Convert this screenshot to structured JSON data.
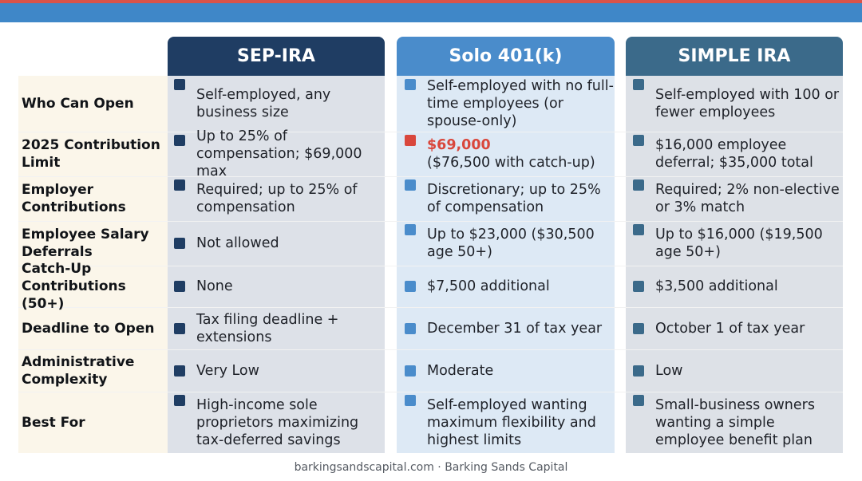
{
  "colors": {
    "top_red": "#d9534a",
    "top_blue": "#3f87c8",
    "sep_ira": "#1f3d63",
    "solo_401k": "#4a8ccb",
    "simple_ira": "#3b6a8a",
    "highlight": "#d9473c"
  },
  "headers": {
    "sep_ira": "SEP-IRA",
    "solo_401k": "Solo 401(k)",
    "simple_ira": "SIMPLE IRA"
  },
  "rows": [
    {
      "label": "Who Can Open",
      "sep_ira": "Self-employed, any business size",
      "solo_401k": "Self-employed with no full-time employees (or spouse-only)",
      "simple_ira": "Self-employed with 100 or fewer employees"
    },
    {
      "label": "2025 Contribution Limit",
      "sep_ira": "Up to 25% of compensation; $69,000 max",
      "solo_401k_highlight": "$69,000",
      "solo_401k": "($76,500 with catch-up)",
      "simple_ira": "$16,000 employee deferral; $35,000 total"
    },
    {
      "label": "Employer Contributions",
      "sep_ira": "Required; up to 25% of compensation",
      "solo_401k": "Discretionary; up to 25% of compensation",
      "simple_ira": "Required; 2% non-elective or 3% match"
    },
    {
      "label": "Employee Salary Deferrals",
      "sep_ira": "Not allowed",
      "solo_401k": "Up to $23,000 ($30,500 age 50+)",
      "simple_ira": "Up to $16,000 ($19,500 age 50+)"
    },
    {
      "label": "Catch-Up Contributions (50+)",
      "sep_ira": "None",
      "solo_401k": "$7,500 additional",
      "simple_ira": "$3,500 additional"
    },
    {
      "label": "Deadline to Open",
      "sep_ira": "Tax filing deadline + extensions",
      "solo_401k": "December 31 of tax year",
      "simple_ira": "October 1 of tax year"
    },
    {
      "label": "Administrative Complexity",
      "sep_ira": "Very Low",
      "solo_401k": "Moderate",
      "simple_ira": "Low"
    },
    {
      "label": "Best For",
      "sep_ira": "High-income sole proprietors maximizing tax-deferred savings",
      "solo_401k": "Self-employed wanting maximum flexibility and highest limits",
      "simple_ira": "Small-business owners wanting a simple employee benefit plan"
    }
  ],
  "footer": "barkingsandscapital.com · Barking Sands Capital"
}
